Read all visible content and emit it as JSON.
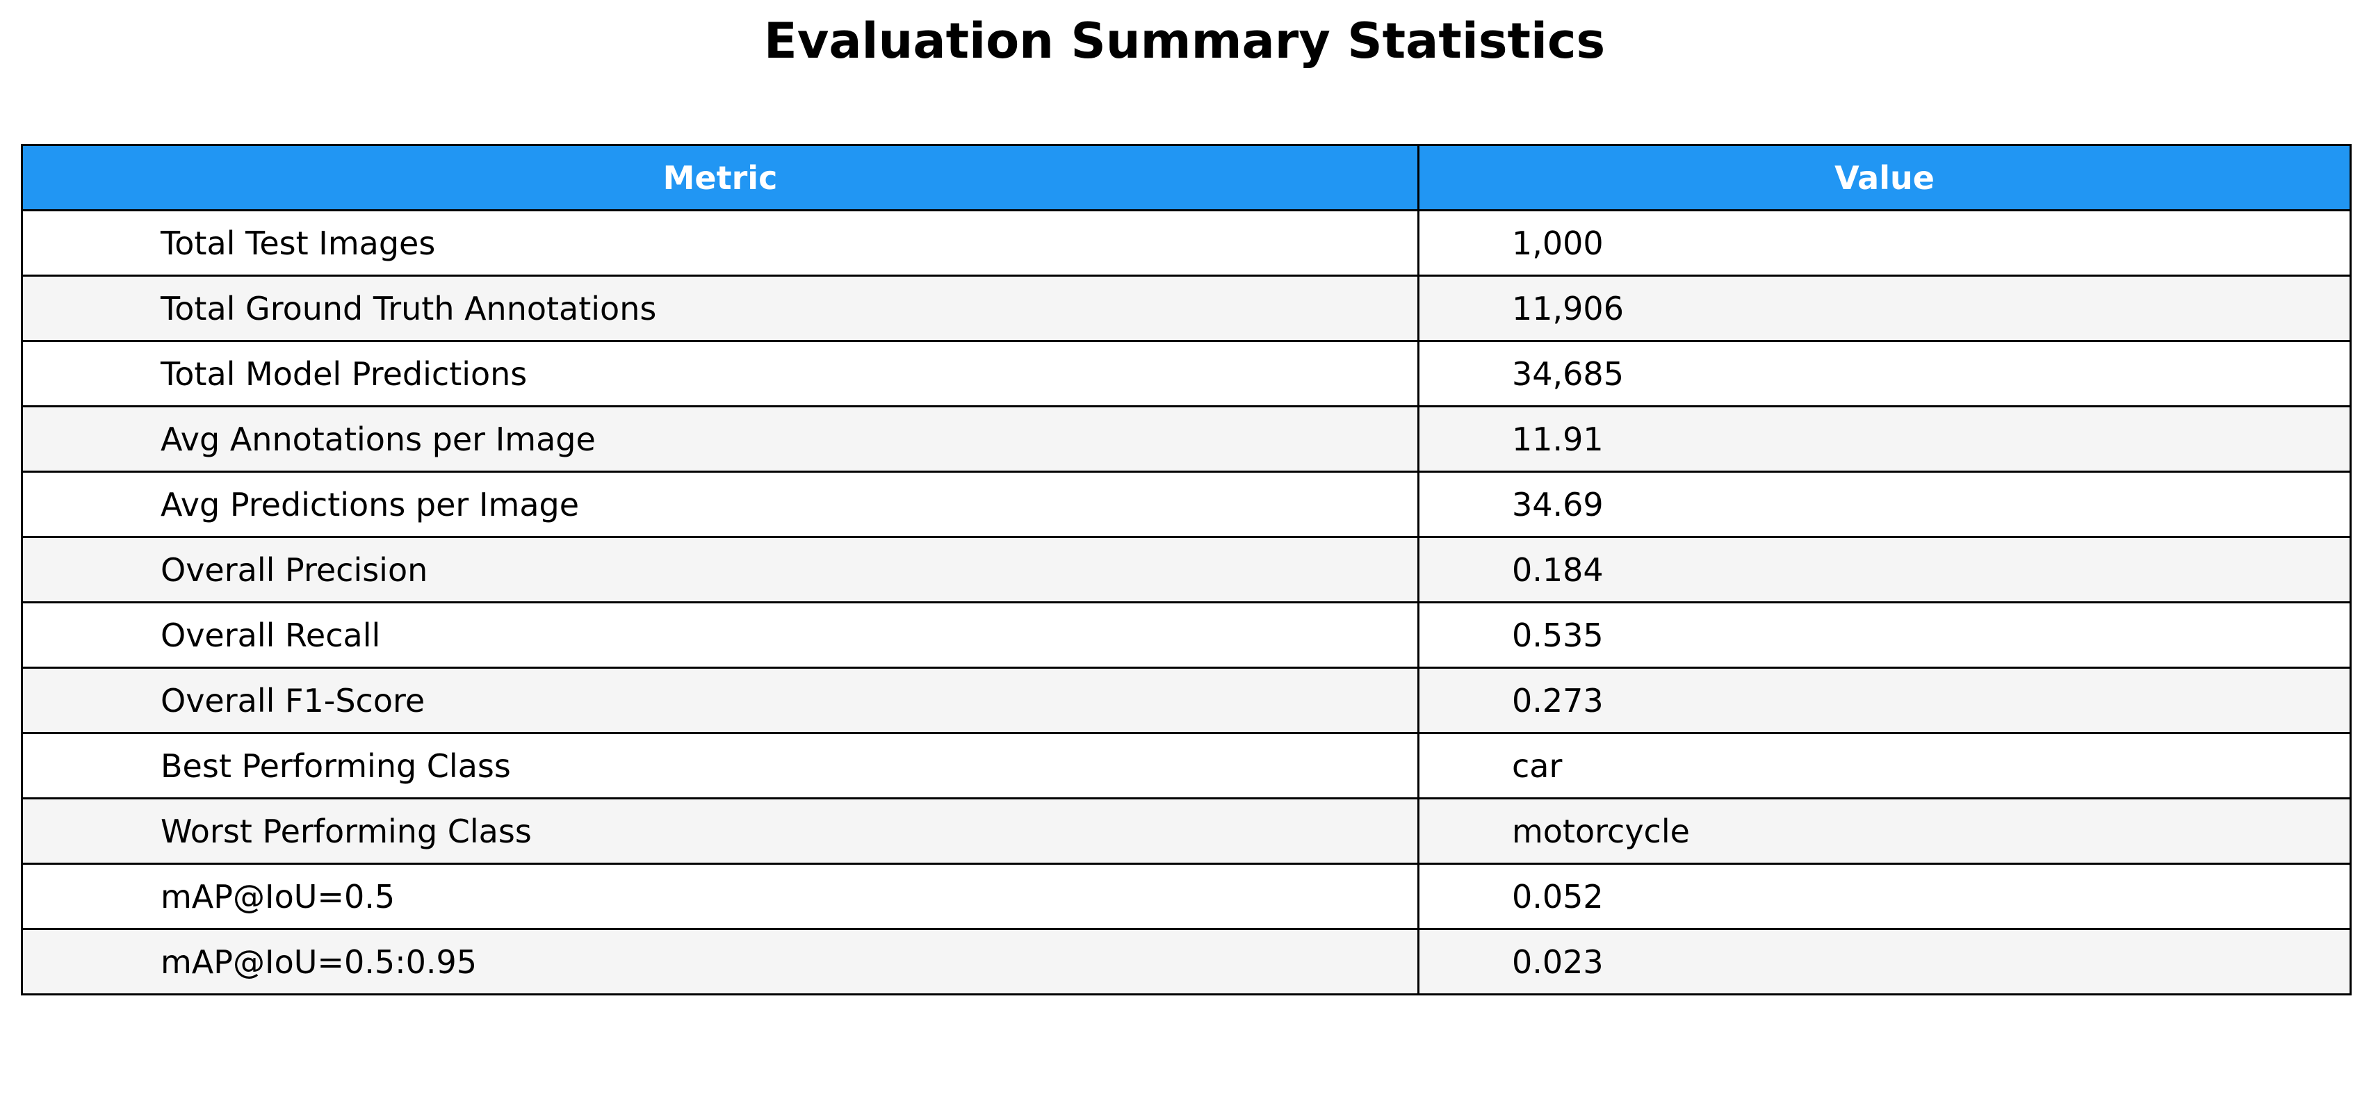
{
  "chart_data": {
    "type": "table",
    "title": "Evaluation Summary Statistics",
    "columns": [
      "Metric",
      "Value"
    ],
    "rows": [
      [
        "Total Test Images",
        "1,000"
      ],
      [
        "Total Ground Truth Annotations",
        "11,906"
      ],
      [
        "Total Model Predictions",
        "34,685"
      ],
      [
        "Avg Annotations per Image",
        "11.91"
      ],
      [
        "Avg Predictions per Image",
        "34.69"
      ],
      [
        "Overall Precision",
        "0.184"
      ],
      [
        "Overall Recall",
        "0.535"
      ],
      [
        "Overall F1-Score",
        "0.273"
      ],
      [
        "Best Performing Class",
        "car"
      ],
      [
        "Worst Performing Class",
        "motorcycle"
      ],
      [
        "mAP@IoU=0.5",
        "0.052"
      ],
      [
        "mAP@IoU=0.5:0.95",
        "0.023"
      ]
    ]
  },
  "colors": {
    "header_bg": "#2196F3",
    "header_text": "#FFFFFF",
    "row_even_bg": "#FFFFFF",
    "row_odd_bg": "#F5F5F5",
    "border": "#000000"
  }
}
